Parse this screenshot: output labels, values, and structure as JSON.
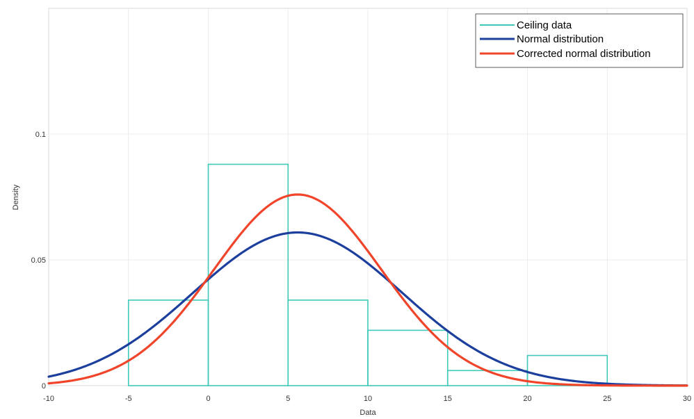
{
  "chart_data": {
    "type": "histogram",
    "xlabel": "Data",
    "ylabel": "Density",
    "xlim": [
      -10,
      30
    ],
    "ylim": [
      0,
      0.15
    ],
    "xticks": [
      -10,
      -5,
      0,
      5,
      10,
      15,
      20,
      25,
      30
    ],
    "xtick_labels": [
      "-10",
      "-5",
      "0",
      "5",
      "10",
      "15",
      "20",
      "25",
      "30"
    ],
    "yticks": [
      0,
      0.05,
      0.1
    ],
    "ytick_labels": [
      "0",
      "0.05",
      "0.1"
    ],
    "grid": true,
    "legend_position": "top-right",
    "series": [
      {
        "name": "Ceiling data",
        "kind": "histogram",
        "color": "#3fc9b8",
        "bins": [
          {
            "x0": -5,
            "x1": 0,
            "density": 0.034
          },
          {
            "x0": 0,
            "x1": 5,
            "density": 0.088
          },
          {
            "x0": 5,
            "x1": 10,
            "density": 0.034
          },
          {
            "x0": 10,
            "x1": 15,
            "density": 0.022
          },
          {
            "x0": 15,
            "x1": 20,
            "density": 0.006
          },
          {
            "x0": 20,
            "x1": 25,
            "density": 0.012
          }
        ]
      },
      {
        "name": "Normal distribution",
        "kind": "normal_pdf",
        "color": "#1c3f9e",
        "mu": 5.6,
        "sigma": 6.55
      },
      {
        "name": "Corrected normal distribution",
        "kind": "normal_pdf",
        "color": "#f0452a",
        "mu": 5.6,
        "sigma": 5.25
      }
    ]
  }
}
